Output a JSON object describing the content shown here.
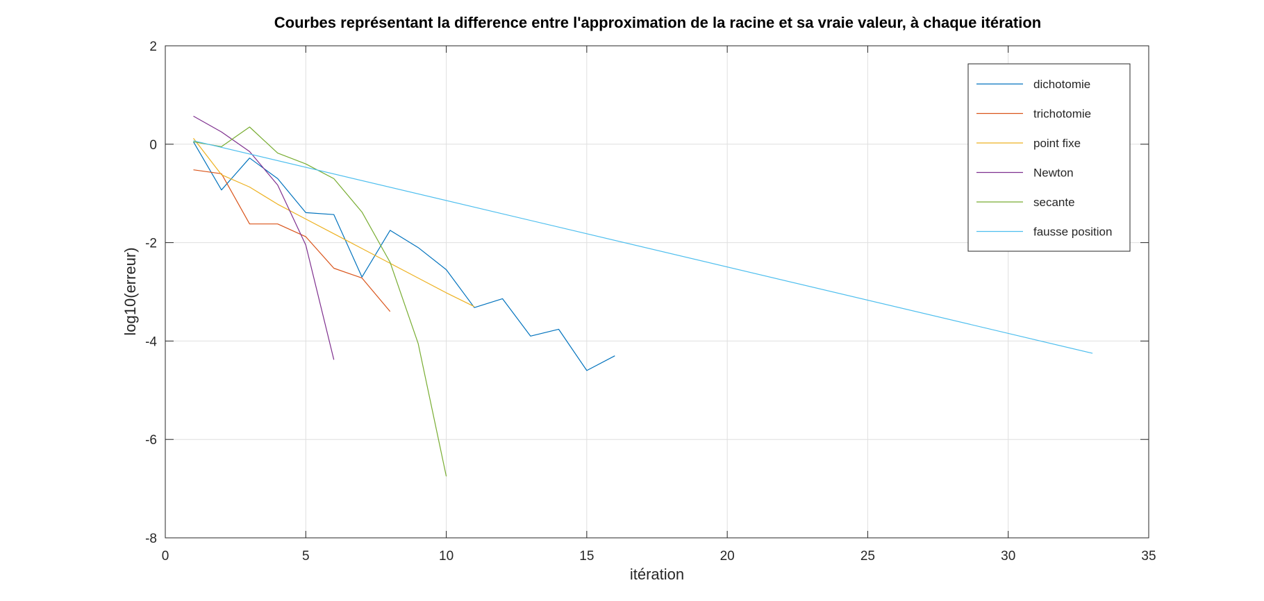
{
  "chart_data": {
    "type": "line",
    "title": "Courbes représentant la difference entre l'approximation de la racine et sa vraie valeur, à chaque itération",
    "xlabel": "itération",
    "ylabel": "log10(erreur)",
    "xlim": [
      0,
      35
    ],
    "ylim": [
      -8,
      2
    ],
    "xticks": [
      0,
      5,
      10,
      15,
      20,
      25,
      30,
      35
    ],
    "yticks": [
      -8,
      -6,
      -4,
      -2,
      0,
      2
    ],
    "grid": true,
    "legend_position": "top-right",
    "series": [
      {
        "name": "dichotomie",
        "color": "#0072bd",
        "x": [
          1,
          2,
          3,
          4,
          5,
          6,
          7,
          8,
          9,
          10,
          11,
          12,
          13,
          14,
          15,
          16
        ],
        "y": [
          0.05,
          -0.93,
          -0.28,
          -0.7,
          -1.39,
          -1.43,
          -2.7,
          -1.75,
          -2.1,
          -2.55,
          -3.32,
          -3.14,
          -3.9,
          -3.76,
          -4.6,
          -4.3
        ]
      },
      {
        "name": "trichotomie",
        "color": "#d95319",
        "x": [
          1,
          2,
          3,
          4,
          5,
          6,
          7,
          8
        ],
        "y": [
          -0.52,
          -0.6,
          -1.62,
          -1.62,
          -1.88,
          -2.52,
          -2.72,
          -3.4
        ]
      },
      {
        "name": "point fixe",
        "color": "#edb120",
        "x": [
          1,
          2,
          3,
          4,
          5,
          6,
          7,
          8,
          9,
          10,
          11
        ],
        "y": [
          0.12,
          -0.62,
          -0.87,
          -1.22,
          -1.52,
          -1.82,
          -2.12,
          -2.42,
          -2.72,
          -3.02,
          -3.3
        ]
      },
      {
        "name": "Newton",
        "color": "#7e2f8e",
        "x": [
          1,
          2,
          3,
          4,
          5,
          6
        ],
        "y": [
          0.57,
          0.25,
          -0.15,
          -0.83,
          -2.05,
          -4.38
        ]
      },
      {
        "name": "secante",
        "color": "#77ac30",
        "x": [
          1,
          2,
          3,
          4,
          5,
          6,
          7,
          8,
          9,
          10
        ],
        "y": [
          0.05,
          -0.05,
          0.35,
          -0.18,
          -0.4,
          -0.7,
          -1.38,
          -2.4,
          -4.05,
          -6.75
        ]
      },
      {
        "name": "fausse position",
        "color": "#4dbeee",
        "x": [
          1,
          33
        ],
        "y": [
          0.07,
          -4.25
        ]
      }
    ]
  }
}
